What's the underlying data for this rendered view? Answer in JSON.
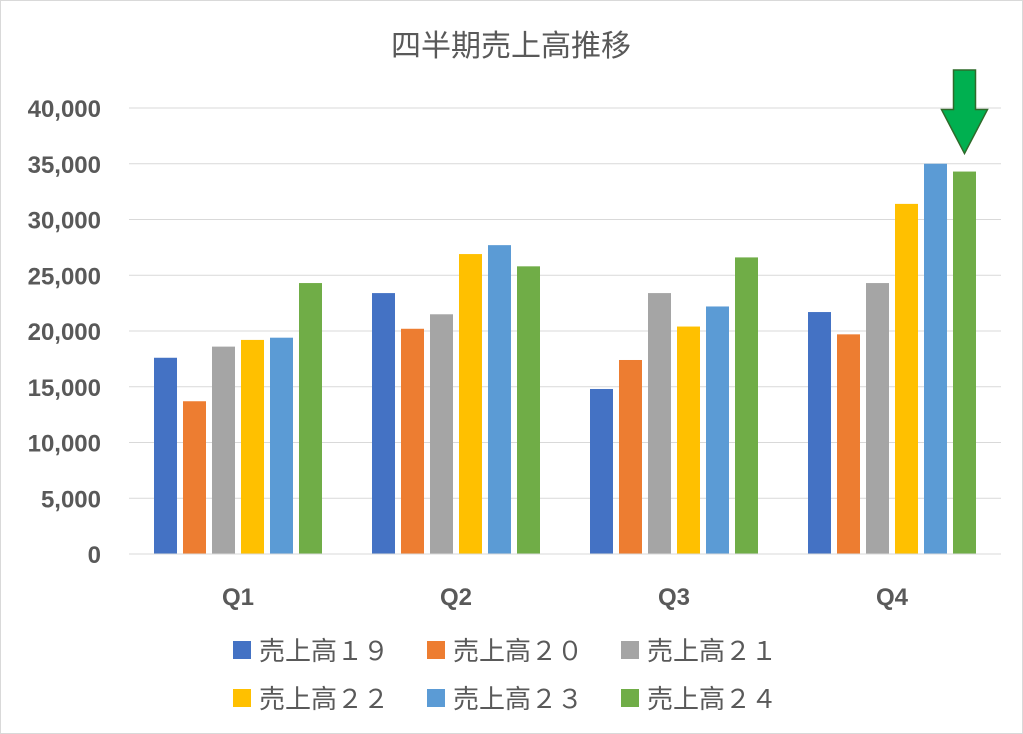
{
  "chart_data": {
    "type": "bar",
    "title": "四半期売上高推移",
    "categories": [
      "Q1",
      "Q2",
      "Q3",
      "Q4"
    ],
    "series": [
      {
        "name": "売上高１９",
        "color": "#4472C4",
        "values": [
          17600,
          23400,
          14800,
          21700
        ]
      },
      {
        "name": "売上高２０",
        "color": "#ED7D31",
        "values": [
          13700,
          20200,
          17400,
          19700
        ]
      },
      {
        "name": "売上高２１",
        "color": "#A5A5A5",
        "values": [
          18600,
          21500,
          23400,
          24300
        ]
      },
      {
        "name": "売上高２２",
        "color": "#FFC000",
        "values": [
          19200,
          26900,
          20400,
          31400
        ]
      },
      {
        "name": "売上高２３",
        "color": "#5B9BD5",
        "values": [
          19400,
          27700,
          22200,
          35000
        ]
      },
      {
        "name": "売上高２４",
        "color": "#70AD47",
        "values": [
          24300,
          25800,
          26600,
          34300
        ]
      }
    ],
    "ylim": [
      0,
      40000
    ],
    "yticks": [
      0,
      5000,
      10000,
      15000,
      20000,
      25000,
      30000,
      35000,
      40000
    ],
    "ytick_labels": [
      "0",
      "5,000",
      "10,000",
      "15,000",
      "20,000",
      "25,000",
      "30,000",
      "35,000",
      "40,000"
    ],
    "xlabel": "",
    "ylabel": "",
    "grid": true,
    "legend_position": "bottom",
    "annotation": {
      "shape": "down-arrow",
      "color": "#00B050",
      "target_series": "売上高２４",
      "target_category": "Q4"
    }
  }
}
